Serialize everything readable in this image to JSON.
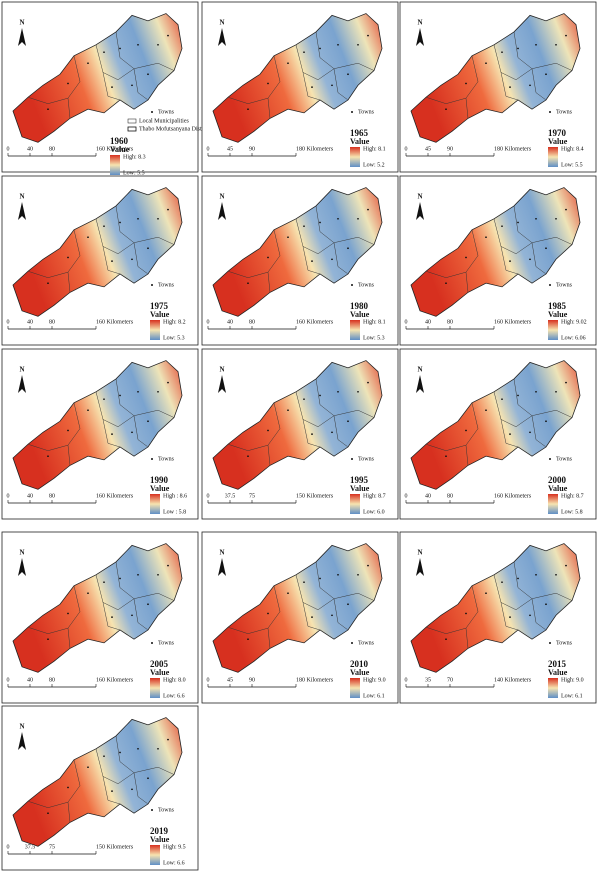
{
  "panels": [
    {
      "north": "N",
      "towns": "Towns",
      "municipalities": "Local Municipalities",
      "district": "Thabo Mofutsanyana District",
      "year": "1960",
      "value": "Value",
      "high": "High: 8.3",
      "low": "Low: 5.5",
      "scale": [
        "0",
        "40",
        "80",
        "160 Kilometers"
      ]
    },
    {
      "north": "N",
      "towns": "Towns",
      "year": "1965",
      "value": "Value",
      "high": "High: 8.1",
      "low": "Low: 5.2",
      "scale": [
        "0",
        "45",
        "90",
        "180 Kilometers"
      ]
    },
    {
      "north": "N",
      "towns": "Towns",
      "year": "1970",
      "value": "Value",
      "high": "High: 8.4",
      "low": "Low: 5.5",
      "scale": [
        "0",
        "45",
        "90",
        "180 Kilometers"
      ]
    },
    {
      "north": "N",
      "towns": "Towns",
      "year": "1975",
      "value": "Value",
      "high": "High: 8.2",
      "low": "Low: 5.3",
      "scale": [
        "0",
        "40",
        "80",
        "160 Kilometers"
      ]
    },
    {
      "north": "N",
      "towns": "Towns",
      "year": "1980",
      "value": "Value",
      "high": "High: 8.1",
      "low": "Low: 5.3",
      "scale": [
        "0",
        "40",
        "80",
        "160 Kilometers"
      ]
    },
    {
      "north": "N",
      "towns": "Towns",
      "year": "1985",
      "value": "Value",
      "high": "High: 9.02",
      "low": "Low: 6.06",
      "scale": [
        "0",
        "40",
        "80",
        "160 Kilometers"
      ]
    },
    {
      "north": "N",
      "towns": "Towns",
      "year": "1990",
      "value": "Value",
      "high": "High : 8.6",
      "low": "Low : 5.8",
      "scale": [
        "0",
        "40",
        "80",
        "160 Kilometers"
      ]
    },
    {
      "north": "N",
      "towns": "Towns",
      "year": "1995",
      "value": "Value",
      "high": "High: 8.7",
      "low": "Low: 6.0",
      "scale": [
        "0",
        "37.5",
        "75",
        "150 Kilometers"
      ]
    },
    {
      "north": "N",
      "towns": "Towns",
      "year": "2000",
      "value": "Value",
      "high": "High: 8.7",
      "low": "Low: 5.8",
      "scale": [
        "0",
        "40",
        "80",
        "160 Kilometers"
      ]
    },
    {
      "north": "N",
      "towns": "Towns",
      "year": "2005",
      "value": "Value",
      "high": "High: 8.0",
      "low": "Low: 6.6",
      "scale": [
        "0",
        "40",
        "80",
        "160 Kilometers"
      ]
    },
    {
      "north": "N",
      "towns": "Towns",
      "year": "2010",
      "value": "Value",
      "high": "High: 9.0",
      "low": "Low: 6.1",
      "scale": [
        "0",
        "45",
        "90",
        "180 Kilometers"
      ]
    },
    {
      "north": "N",
      "towns": "Towns",
      "year": "2015",
      "value": "Value",
      "high": "High: 9.0",
      "low": "Low: 6.1",
      "scale": [
        "0",
        "35",
        "70",
        "140 Kilometers"
      ]
    },
    {
      "north": "N",
      "towns": "Towns",
      "year": "2019",
      "value": "Value",
      "high": "High: 9.5",
      "low": "Low: 6.6",
      "scale": [
        "0",
        "37.5",
        "75",
        "150 Kilometers"
      ]
    }
  ]
}
